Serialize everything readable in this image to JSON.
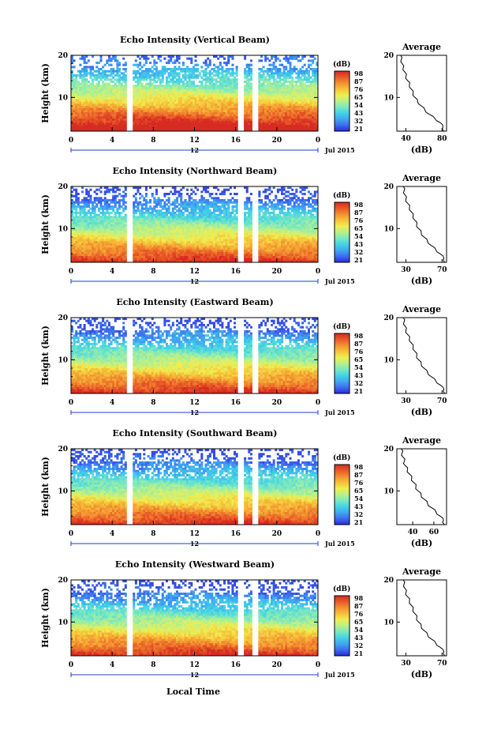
{
  "figure": {
    "xlabel": "Local Time",
    "date_label": "Jul 2015",
    "mid_marker_label": "12"
  },
  "colorbar": {
    "unit": "(dB)",
    "stops": [
      "#2a2ad8",
      "#3d6cf0",
      "#3fa8f0",
      "#43d3e6",
      "#7be8c0",
      "#b8f08a",
      "#f0ee50",
      "#f6c23a",
      "#f39030",
      "#e85a28",
      "#d62a22"
    ]
  },
  "chart_data": [
    {
      "type": "heatmap",
      "title": "Echo Intensity (Vertical Beam)",
      "ylabel": "Height (km)",
      "xlim": [
        0,
        24
      ],
      "ylim": [
        2,
        20
      ],
      "xticks": [
        "0",
        "4",
        "8",
        "12",
        "16",
        "20",
        "0"
      ],
      "yticks": [
        {
          "v": 10,
          "label": "10"
        },
        {
          "v": 20,
          "label": "20"
        }
      ],
      "colorbar_ticks": [
        "98",
        "87",
        "76",
        "65",
        "54",
        "43",
        "32",
        "21"
      ],
      "average": {
        "title": "Average",
        "xlabel": "(dB)",
        "xlim": [
          30,
          85
        ],
        "xticks": [
          40,
          80
        ],
        "profile": [
          [
            82,
            2
          ],
          [
            81,
            3
          ],
          [
            78,
            4
          ],
          [
            72,
            5
          ],
          [
            66,
            6
          ],
          [
            61,
            7
          ],
          [
            57,
            8
          ],
          [
            53,
            9
          ],
          [
            50,
            10
          ],
          [
            48,
            11
          ],
          [
            46,
            12
          ],
          [
            44,
            13
          ],
          [
            42,
            14
          ],
          [
            40,
            15
          ],
          [
            39,
            16
          ],
          [
            37,
            17
          ],
          [
            36,
            18
          ],
          [
            35,
            19
          ],
          [
            34,
            20
          ]
        ]
      }
    },
    {
      "type": "heatmap",
      "title": "Echo Intensity (Northward Beam)",
      "ylabel": "Height (km)",
      "xlim": [
        0,
        24
      ],
      "ylim": [
        2,
        20
      ],
      "xticks": [
        "0",
        "4",
        "8",
        "12",
        "16",
        "20",
        "0"
      ],
      "yticks": [
        {
          "v": 10,
          "label": "10"
        },
        {
          "v": 20,
          "label": "20"
        }
      ],
      "colorbar_ticks": [
        "98",
        "87",
        "76",
        "65",
        "54",
        "43",
        "32",
        "21"
      ],
      "average": {
        "title": "Average",
        "xlabel": "(dB)",
        "xlim": [
          20,
          75
        ],
        "xticks": [
          30,
          70
        ],
        "profile": [
          [
            73,
            2
          ],
          [
            72,
            3
          ],
          [
            68,
            4
          ],
          [
            63,
            5
          ],
          [
            58,
            6
          ],
          [
            54,
            7
          ],
          [
            50,
            8
          ],
          [
            47,
            9
          ],
          [
            44,
            10
          ],
          [
            42,
            11
          ],
          [
            40,
            12
          ],
          [
            38,
            13
          ],
          [
            36,
            14
          ],
          [
            34,
            15
          ],
          [
            32,
            16
          ],
          [
            30,
            17
          ],
          [
            29,
            18
          ],
          [
            28,
            19
          ],
          [
            27,
            20
          ]
        ]
      }
    },
    {
      "type": "heatmap",
      "title": "Echo Intensity (Eastward Beam)",
      "ylabel": "Height (km)",
      "xlim": [
        0,
        24
      ],
      "ylim": [
        2,
        20
      ],
      "xticks": [
        "0",
        "4",
        "8",
        "12",
        "16",
        "20",
        "0"
      ],
      "yticks": [
        {
          "v": 10,
          "label": "10"
        },
        {
          "v": 20,
          "label": "20"
        }
      ],
      "colorbar_ticks": [
        "98",
        "87",
        "76",
        "65",
        "54",
        "43",
        "32",
        "21"
      ],
      "average": {
        "title": "Average",
        "xlabel": "(dB)",
        "xlim": [
          20,
          75
        ],
        "xticks": [
          30,
          70
        ],
        "profile": [
          [
            73,
            2
          ],
          [
            72,
            3
          ],
          [
            68,
            4
          ],
          [
            63,
            5
          ],
          [
            58,
            6
          ],
          [
            54,
            7
          ],
          [
            50,
            8
          ],
          [
            47,
            9
          ],
          [
            44,
            10
          ],
          [
            42,
            11
          ],
          [
            40,
            12
          ],
          [
            38,
            13
          ],
          [
            36,
            14
          ],
          [
            34,
            15
          ],
          [
            32,
            16
          ],
          [
            30,
            17
          ],
          [
            29,
            18
          ],
          [
            28,
            19
          ],
          [
            27,
            20
          ]
        ]
      }
    },
    {
      "type": "heatmap",
      "title": "Echo Intensity (Southward Beam)",
      "ylabel": "Height (km)",
      "xlim": [
        0,
        24
      ],
      "ylim": [
        2,
        20
      ],
      "xticks": [
        "0",
        "4",
        "8",
        "12",
        "16",
        "20",
        "0"
      ],
      "yticks": [
        {
          "v": 10,
          "label": "10"
        },
        {
          "v": 20,
          "label": "20"
        }
      ],
      "colorbar_ticks": [
        "98",
        "87",
        "76",
        "65",
        "54",
        "43",
        "32",
        "21"
      ],
      "average": {
        "title": "Average",
        "xlabel": "(dB)",
        "xlim": [
          25,
          72
        ],
        "xticks": [
          40,
          60
        ],
        "profile": [
          [
            70,
            2
          ],
          [
            69,
            3
          ],
          [
            66,
            4
          ],
          [
            62,
            5
          ],
          [
            58,
            6
          ],
          [
            54,
            7
          ],
          [
            51,
            8
          ],
          [
            48,
            9
          ],
          [
            45,
            10
          ],
          [
            43,
            11
          ],
          [
            41,
            12
          ],
          [
            39,
            13
          ],
          [
            37,
            14
          ],
          [
            35,
            15
          ],
          [
            33,
            16
          ],
          [
            32,
            17
          ],
          [
            31,
            18
          ],
          [
            30,
            19
          ],
          [
            29,
            20
          ]
        ]
      }
    },
    {
      "type": "heatmap",
      "title": "Echo Intensity (Westward Beam)",
      "ylabel": "Height (km)",
      "xlim": [
        0,
        24
      ],
      "ylim": [
        2,
        20
      ],
      "xticks": [
        "0",
        "4",
        "8",
        "12",
        "16",
        "20",
        "0"
      ],
      "yticks": [
        {
          "v": 10,
          "label": "10"
        },
        {
          "v": 20,
          "label": "20"
        }
      ],
      "colorbar_ticks": [
        "98",
        "87",
        "76",
        "65",
        "54",
        "43",
        "32",
        "21"
      ],
      "average": {
        "title": "Average",
        "xlabel": "(dB)",
        "xlim": [
          20,
          75
        ],
        "xticks": [
          30,
          70
        ],
        "profile": [
          [
            73,
            2
          ],
          [
            72,
            3
          ],
          [
            68,
            4
          ],
          [
            63,
            5
          ],
          [
            58,
            6
          ],
          [
            54,
            7
          ],
          [
            50,
            8
          ],
          [
            47,
            9
          ],
          [
            44,
            10
          ],
          [
            42,
            11
          ],
          [
            40,
            12
          ],
          [
            38,
            13
          ],
          [
            36,
            14
          ],
          [
            34,
            15
          ],
          [
            32,
            16
          ],
          [
            30,
            17
          ],
          [
            29,
            18
          ],
          [
            28,
            19
          ],
          [
            27,
            20
          ]
        ]
      }
    }
  ]
}
